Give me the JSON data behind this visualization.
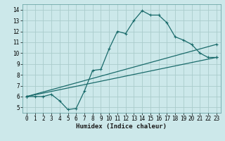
{
  "xlabel": "Humidex (Indice chaleur)",
  "background_color": "#cce8ea",
  "grid_color": "#aacccc",
  "line_color": "#1a6b6b",
  "xlim": [
    -0.5,
    23.5
  ],
  "ylim": [
    4.5,
    14.5
  ],
  "xticks": [
    0,
    1,
    2,
    3,
    4,
    5,
    6,
    7,
    8,
    9,
    10,
    11,
    12,
    13,
    14,
    15,
    16,
    17,
    18,
    19,
    20,
    21,
    22,
    23
  ],
  "yticks": [
    5,
    6,
    7,
    8,
    9,
    10,
    11,
    12,
    13,
    14
  ],
  "curve1_x": [
    0,
    1,
    2,
    3,
    4,
    5,
    6,
    7,
    8,
    9,
    10,
    11,
    12,
    13,
    14,
    15,
    16,
    17,
    18,
    19,
    20,
    21,
    22,
    23
  ],
  "curve1_y": [
    6.0,
    6.0,
    6.0,
    6.2,
    5.6,
    4.8,
    4.9,
    6.5,
    8.4,
    8.5,
    10.4,
    12.0,
    11.8,
    13.0,
    13.9,
    13.5,
    13.5,
    12.8,
    11.5,
    11.2,
    10.8,
    10.0,
    9.6,
    9.6
  ],
  "curve2_x": [
    0,
    23
  ],
  "curve2_y": [
    6.0,
    9.6
  ],
  "curve3_x": [
    0,
    23
  ],
  "curve3_y": [
    6.0,
    10.8
  ],
  "tick_fontsize": 5.5,
  "xlabel_fontsize": 6.5
}
